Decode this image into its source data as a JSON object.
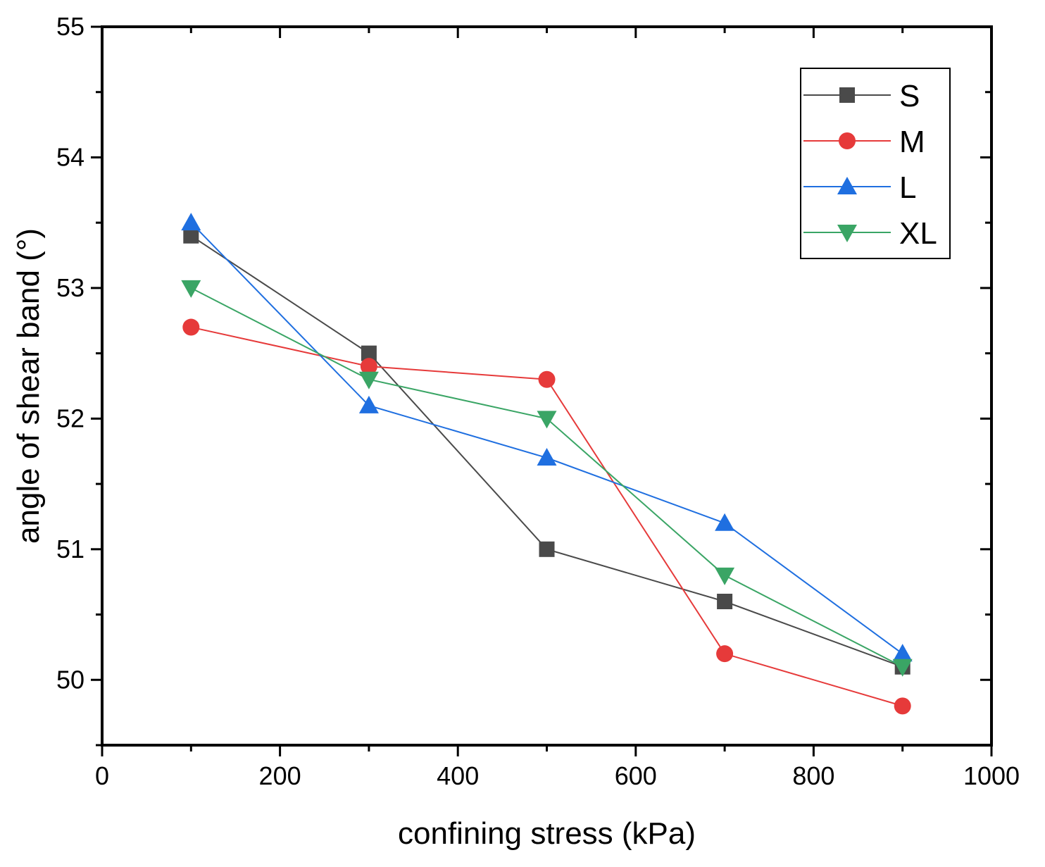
{
  "chart_data": {
    "type": "line",
    "title": "",
    "xlabel": "confining stress (kPa)",
    "ylabel": "angle of shear band (°)",
    "xlim": [
      0,
      1000
    ],
    "ylim": [
      49.5,
      55
    ],
    "x_ticks": [
      0,
      200,
      400,
      600,
      800,
      1000
    ],
    "y_ticks": [
      50,
      51,
      52,
      53,
      54,
      55
    ],
    "x_tick_labels": [
      "0",
      "200",
      "400",
      "600",
      "800",
      "1000"
    ],
    "y_tick_labels": [
      "50",
      "51",
      "52",
      "53",
      "54",
      "55"
    ],
    "grid": false,
    "legend_position": "top-right",
    "x": [
      100,
      300,
      500,
      700,
      900
    ],
    "series": [
      {
        "name": "S",
        "values": [
          53.4,
          52.5,
          51.0,
          50.6,
          50.1
        ],
        "color": "#4a4a4a",
        "marker": "square"
      },
      {
        "name": "M",
        "values": [
          52.7,
          52.4,
          52.3,
          50.2,
          49.8
        ],
        "color": "#e63a3a",
        "marker": "circle"
      },
      {
        "name": "L",
        "values": [
          53.5,
          52.1,
          51.7,
          51.2,
          50.2
        ],
        "color": "#1f6fe0",
        "marker": "triangle-up"
      },
      {
        "name": "XL",
        "values": [
          53.0,
          52.3,
          52.0,
          50.8,
          50.1
        ],
        "color": "#3aa565",
        "marker": "triangle-down"
      }
    ]
  }
}
